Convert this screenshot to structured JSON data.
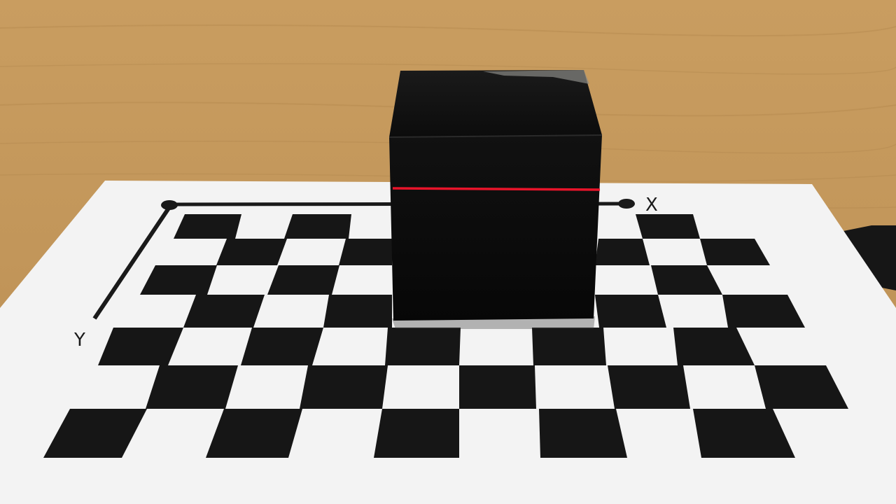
{
  "axis_labels": {
    "x": "X",
    "y": "Y"
  },
  "colors": {
    "table_wood": "#c59a5c",
    "paper": "#f4f4f4",
    "black_square": "#161616",
    "cube": "#0b0b0b",
    "laser_line": "#e8142a"
  },
  "icon_names": [
    "cube-object",
    "checkerboard-target",
    "laser-line"
  ]
}
